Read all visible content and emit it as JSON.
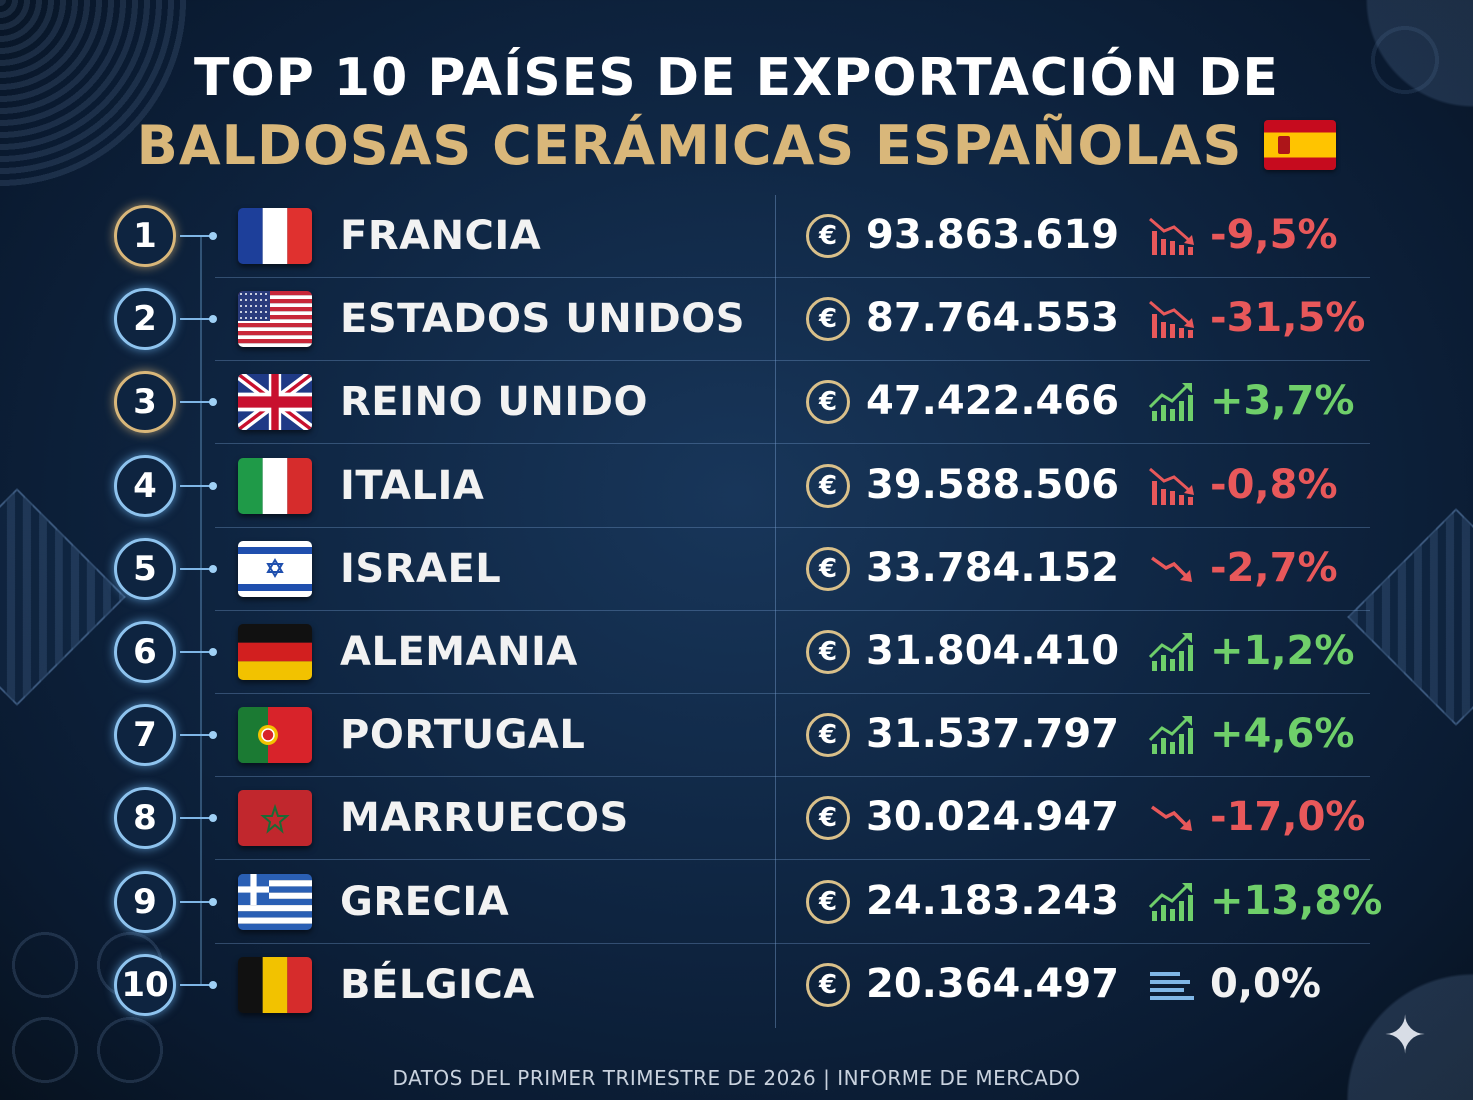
{
  "title_line1": "TOP 10 PAÍSES DE EXPORTACIÓN DE",
  "title_line2": "BALDOSAS CERÁMICAS ESPAÑOLAS",
  "footer": "DATOS DEL PRIMER TRIMESTRE DE 2026 | INFORME DE MERCADO",
  "colors": {
    "gold": "#d9b77a",
    "negative": "#e8585a",
    "positive": "#6fcf6a",
    "background": "#0f2643"
  },
  "chart_data": {
    "type": "table",
    "title": "TOP 10 PAÍSES DE EXPORTACIÓN DE BALDOSAS CERÁMICAS ESPAÑOLAS",
    "columns": [
      "rank",
      "country",
      "value",
      "change"
    ],
    "rows": [
      {
        "rank": "1",
        "country": "FRANCIA",
        "flag": "france-flag",
        "value": "93.863.619",
        "change": "-9,5%",
        "trend": "down"
      },
      {
        "rank": "2",
        "country": "ESTADOS UNIDOS",
        "flag": "usa-flag",
        "value": "87.764.553",
        "change": "-31,5%",
        "trend": "down"
      },
      {
        "rank": "3",
        "country": "REINO UNIDO",
        "flag": "uk-flag",
        "value": "47.422.466",
        "change": "+3,7%",
        "trend": "up"
      },
      {
        "rank": "4",
        "country": "ITALIA",
        "flag": "italy-flag",
        "value": "39.588.506",
        "change": "-0,8%",
        "trend": "down"
      },
      {
        "rank": "5",
        "country": "ISRAEL",
        "flag": "israel-flag",
        "value": "33.784.152",
        "change": "-2,7%",
        "trend": "down-arrow"
      },
      {
        "rank": "6",
        "country": "ALEMANIA",
        "flag": "germany-flag",
        "value": "31.804.410",
        "change": "+1,2%",
        "trend": "up"
      },
      {
        "rank": "7",
        "country": "PORTUGAL",
        "flag": "portugal-flag",
        "value": "31.537.797",
        "change": "+4,6%",
        "trend": "up"
      },
      {
        "rank": "8",
        "country": "MARRUECOS",
        "flag": "morocco-flag",
        "value": "30.024.947",
        "change": "-17,0%",
        "trend": "down-arrow"
      },
      {
        "rank": "9",
        "country": "GRECIA",
        "flag": "greece-flag",
        "value": "24.183.243",
        "change": "+13,8%",
        "trend": "up"
      },
      {
        "rank": "10",
        "country": "BÉLGICA",
        "flag": "belgium-flag",
        "value": "20.364.497",
        "change": "0,0%",
        "trend": "flat"
      }
    ]
  }
}
